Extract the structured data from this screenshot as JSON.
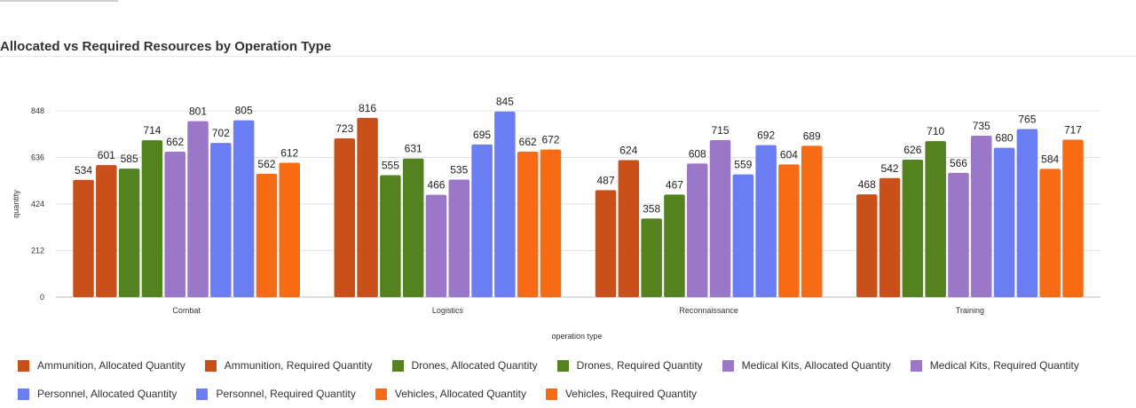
{
  "title": "Allocated vs Required Resources by Operation Type",
  "chart_data": {
    "type": "bar",
    "xlabel": "operation type",
    "ylabel": "quantity",
    "ylim": [
      0,
      848
    ],
    "yticks": [
      "0",
      "212",
      "424",
      "636",
      "848"
    ],
    "grid": true,
    "legend_position": "bottom",
    "categories": [
      "Combat",
      "Logistics",
      "Reconnaissance",
      "Training"
    ],
    "series": [
      {
        "name": "Ammunition, Allocated Quantity",
        "color": "#C9501A",
        "values": [
          534,
          723,
          487,
          468
        ]
      },
      {
        "name": "Ammunition, Required Quantity",
        "color": "#C9501A",
        "values": [
          601,
          816,
          624,
          542
        ]
      },
      {
        "name": "Drones, Allocated Quantity",
        "color": "#53821F",
        "values": [
          585,
          555,
          358,
          626
        ]
      },
      {
        "name": "Drones, Required Quantity",
        "color": "#53821F",
        "values": [
          714,
          631,
          467,
          710
        ]
      },
      {
        "name": "Medical Kits, Allocated Quantity",
        "color": "#9A77C7",
        "values": [
          662,
          466,
          608,
          566
        ]
      },
      {
        "name": "Medical Kits, Required Quantity",
        "color": "#9A77C7",
        "values": [
          801,
          535,
          715,
          735
        ]
      },
      {
        "name": "Personnel, Allocated Quantity",
        "color": "#6B7DF2",
        "values": [
          702,
          695,
          559,
          680
        ]
      },
      {
        "name": "Personnel, Required Quantity",
        "color": "#6B7DF2",
        "values": [
          805,
          845,
          692,
          765
        ]
      },
      {
        "name": "Vehicles, Allocated Quantity",
        "color": "#F76B15",
        "values": [
          562,
          662,
          604,
          584
        ]
      },
      {
        "name": "Vehicles, Required Quantity",
        "color": "#F76B15",
        "values": [
          612,
          672,
          689,
          717
        ]
      }
    ]
  }
}
